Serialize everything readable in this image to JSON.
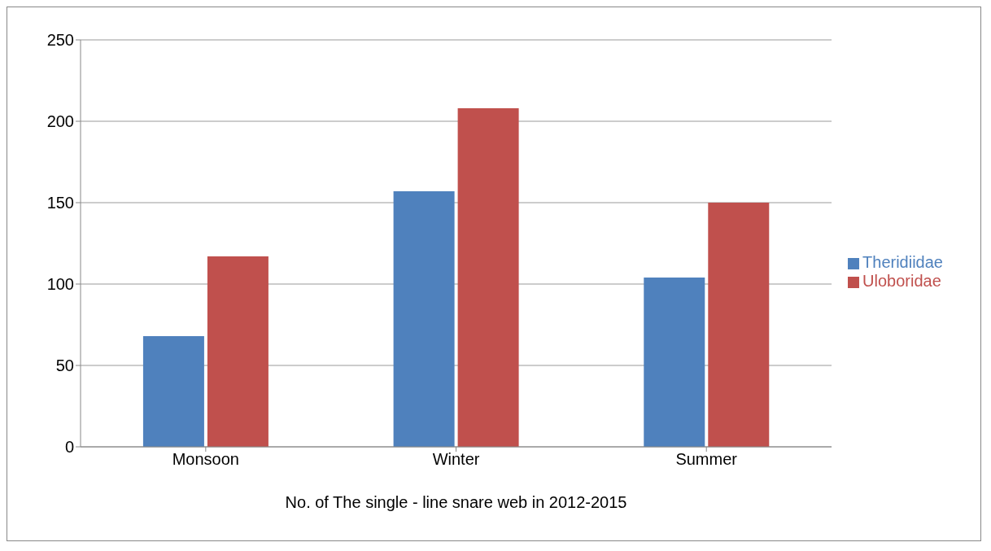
{
  "chart_data": {
    "type": "bar",
    "xlabel": "No. of The single - line snare web in 2012-2015",
    "categories": [
      "Monsoon",
      "Winter",
      "Summer"
    ],
    "series": [
      {
        "name": "Theridiidae",
        "color": "#4f81bd",
        "values": [
          68,
          157,
          104
        ]
      },
      {
        "name": "Uloboridae",
        "color": "#c0504d",
        "values": [
          117,
          208,
          150
        ]
      }
    ],
    "ylim": [
      0,
      250
    ],
    "yticks": [
      0,
      50,
      100,
      150,
      200,
      250
    ],
    "grid": "y",
    "legend": "right"
  }
}
